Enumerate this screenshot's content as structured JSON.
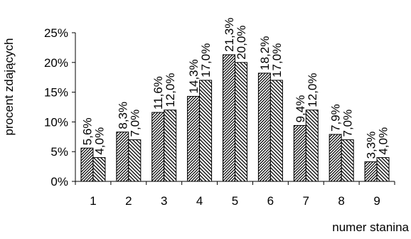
{
  "chart_data": {
    "type": "bar",
    "title": "",
    "ylabel": "procent zdających",
    "xlabel": "numer stanina",
    "categories": [
      "1",
      "2",
      "3",
      "4",
      "5",
      "6",
      "7",
      "8",
      "9"
    ],
    "ylim": [
      0,
      25
    ],
    "y_ticks": [
      "0%",
      "5%",
      "10%",
      "15%",
      "20%",
      "25%"
    ],
    "series": [
      {
        "values": [
          5.6,
          8.3,
          11.6,
          14.3,
          21.3,
          18.2,
          9.4,
          7.9,
          3.3
        ],
        "labels": [
          "5,6%",
          "8,3%",
          "11,6%",
          "14,3%",
          "21,3%",
          "18,2%",
          "9,4%",
          "7,9%",
          "3,3%"
        ],
        "pattern": "diagonal-right-dense"
      },
      {
        "values": [
          4.0,
          7.0,
          12.0,
          17.0,
          20.0,
          17.0,
          12.0,
          7.0,
          4.0
        ],
        "labels": [
          "4,0%",
          "7,0%",
          "12,0%",
          "17,0%",
          "20,0%",
          "17,0%",
          "12,0%",
          "7,0%",
          "4,0%"
        ],
        "pattern": "diagonal-left"
      }
    ],
    "grid": false,
    "legend": "none"
  }
}
